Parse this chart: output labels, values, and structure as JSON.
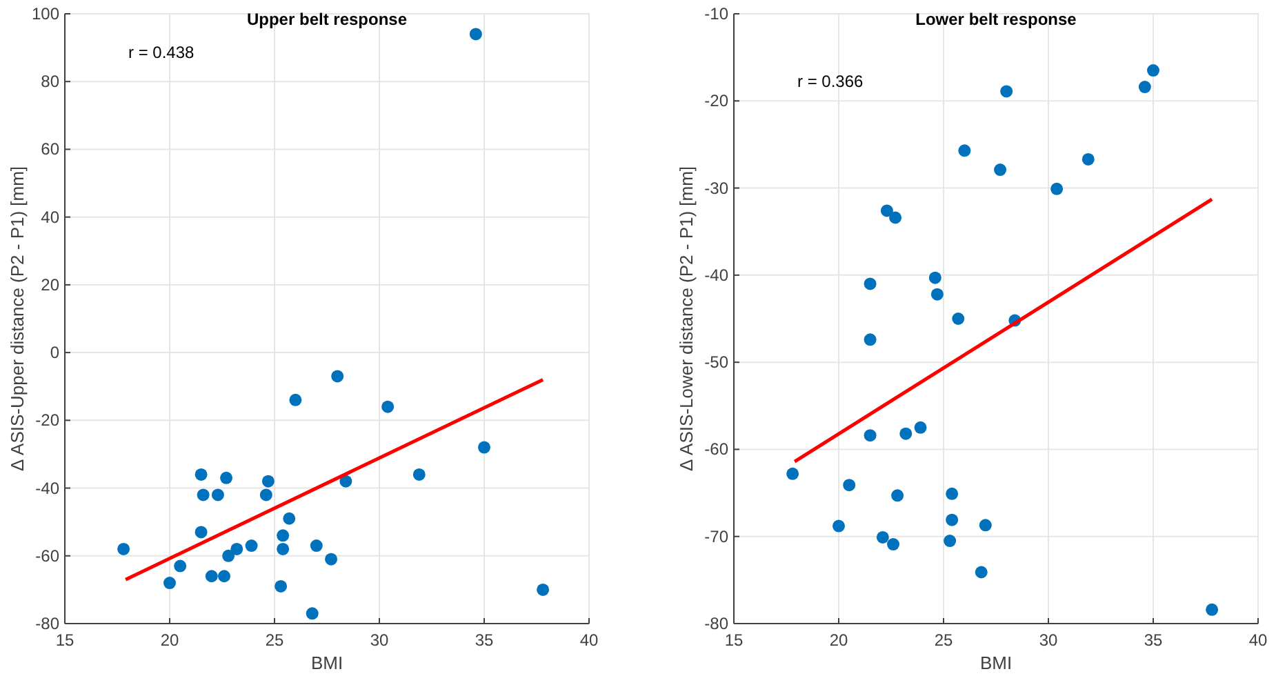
{
  "chart_data": [
    {
      "type": "scatter",
      "title": "Upper belt response",
      "xlabel": "BMI",
      "ylabel": "Δ ASIS-Upper distance (P2 - P1) [mm]",
      "annotations": [
        "r = 0.438"
      ],
      "xlim": [
        15,
        40
      ],
      "xticks": [
        15,
        20,
        25,
        30,
        35,
        40
      ],
      "ylim": [
        -80,
        100
      ],
      "yticks": [
        -80,
        -60,
        -40,
        -20,
        0,
        20,
        40,
        60,
        80,
        100
      ],
      "grid": true,
      "marker": "circle",
      "series": [
        {
          "color": "#0072bd",
          "x": [
            17.8,
            20.0,
            20.5,
            21.5,
            21.6,
            21.5,
            22.0,
            22.3,
            22.6,
            22.7,
            22.8,
            23.2,
            23.9,
            24.6,
            24.7,
            25.3,
            25.4,
            25.4,
            25.7,
            26.0,
            26.8,
            27.0,
            27.7,
            28.0,
            28.4,
            30.4,
            31.9,
            35.0,
            37.8,
            34.6
          ],
          "values": [
            -58,
            -68,
            -63,
            -36,
            -42,
            -53,
            -66,
            -42,
            -66,
            -37,
            -60,
            -58,
            -57,
            -42,
            -38,
            -69,
            -54,
            -58,
            -49,
            -14,
            -77,
            -57,
            -61,
            -7,
            -38,
            -16,
            -36,
            -28,
            -70,
            94
          ]
        },
        {
          "type": "line",
          "color": "#ff0000",
          "marker": "none",
          "x": [
            17.9,
            37.8
          ],
          "values": [
            -67,
            -8
          ]
        }
      ]
    },
    {
      "type": "scatter",
      "title": "Lower belt response",
      "xlabel": "BMI",
      "ylabel": "Δ ASIS-Lower distance (P2 - P1) [mm]",
      "annotations": [
        "r = 0.366"
      ],
      "xlim": [
        15,
        40
      ],
      "xticks": [
        15,
        20,
        25,
        30,
        35,
        40
      ],
      "ylim": [
        -80,
        -10
      ],
      "yticks": [
        -80,
        -70,
        -60,
        -50,
        -40,
        -30,
        -20,
        -10
      ],
      "grid": true,
      "marker": "circle",
      "series": [
        {
          "color": "#0072bd",
          "x": [
            35.0,
            34.6,
            28.0,
            26.0,
            27.7,
            31.9,
            30.4,
            22.3,
            22.7,
            21.5,
            24.6,
            24.7,
            25.7,
            28.4,
            21.5,
            21.5,
            23.2,
            23.9,
            17.8,
            20.5,
            22.8,
            25.4,
            20.0,
            25.4,
            27.0,
            22.1,
            22.6,
            25.3,
            26.8,
            37.8
          ],
          "values": [
            -16.5,
            -18.4,
            -18.9,
            -25.7,
            -27.9,
            -26.7,
            -30.1,
            -32.6,
            -33.4,
            -41.0,
            -40.3,
            -42.2,
            -45.0,
            -45.2,
            -47.4,
            -58.4,
            -58.2,
            -57.5,
            -62.8,
            -64.1,
            -65.3,
            -65.1,
            -68.8,
            -68.1,
            -68.7,
            -70.1,
            -70.9,
            -70.5,
            -74.1,
            -78.4
          ]
        },
        {
          "type": "line",
          "color": "#ff0000",
          "marker": "none",
          "x": [
            17.9,
            37.8
          ],
          "values": [
            -61.4,
            -31.3
          ]
        }
      ]
    }
  ]
}
